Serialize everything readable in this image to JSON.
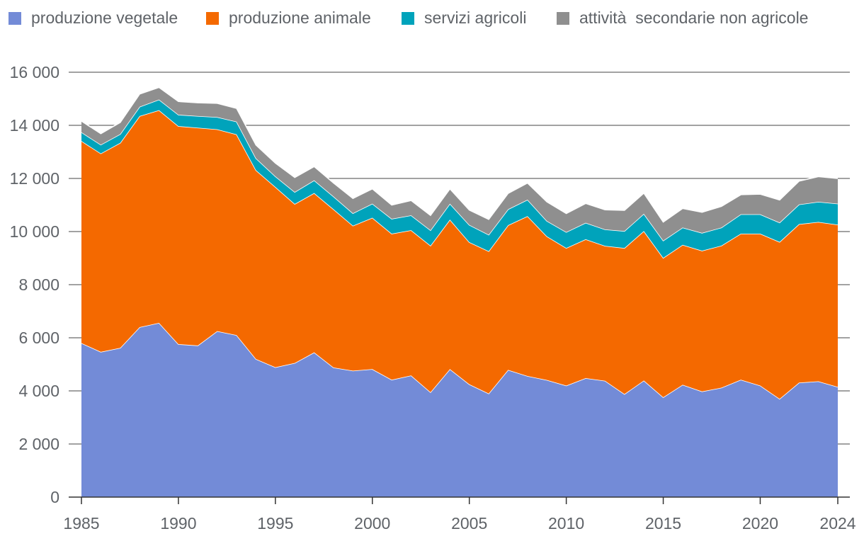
{
  "chart_data": {
    "type": "area",
    "stacked": true,
    "title": "",
    "xlabel": "",
    "ylabel": "",
    "ylim": [
      0,
      16000
    ],
    "yticks": [
      0,
      2000,
      4000,
      6000,
      8000,
      10000,
      12000,
      14000,
      16000
    ],
    "ytick_labels": [
      "0",
      "2 000",
      "4 000",
      "6 000",
      "8 000",
      "10 000",
      "12 000",
      "14 000",
      "16 000"
    ],
    "xticks": [
      1985,
      1990,
      1995,
      2000,
      2005,
      2010,
      2015,
      2020,
      2024
    ],
    "xtick_labels": [
      "1985",
      "1990",
      "1995",
      "2000",
      "2005",
      "2010",
      "2015",
      "2020",
      "2024"
    ],
    "grid": true,
    "legend_position": "top-left",
    "x": [
      1985,
      1986,
      1987,
      1988,
      1989,
      1990,
      1991,
      1992,
      1993,
      1994,
      1995,
      1996,
      1997,
      1998,
      1999,
      2000,
      2001,
      2002,
      2003,
      2004,
      2005,
      2006,
      2007,
      2008,
      2009,
      2010,
      2011,
      2012,
      2013,
      2014,
      2015,
      2016,
      2017,
      2018,
      2019,
      2020,
      2021,
      2022,
      2023,
      2024
    ],
    "series": [
      {
        "name": "produzione vegetale",
        "color": "#738bd7",
        "values": [
          5800,
          5470,
          5620,
          6400,
          6560,
          5760,
          5710,
          6250,
          6100,
          5200,
          4890,
          5050,
          5450,
          4880,
          4760,
          4820,
          4420,
          4580,
          3950,
          4820,
          4250,
          3900,
          4790,
          4560,
          4410,
          4200,
          4480,
          4380,
          3880,
          4390,
          3760,
          4230,
          3980,
          4120,
          4420,
          4200,
          3700,
          4310,
          4360,
          4150
        ]
      },
      {
        "name": "produzione animale",
        "color": "#f46900",
        "values": [
          7610,
          7470,
          7720,
          7950,
          8010,
          8210,
          8200,
          7600,
          7560,
          7110,
          6790,
          5990,
          6000,
          5960,
          5460,
          5700,
          5500,
          5470,
          5520,
          5630,
          5350,
          5360,
          5450,
          6020,
          5410,
          5180,
          5230,
          5080,
          5500,
          5630,
          5250,
          5270,
          5300,
          5350,
          5500,
          5720,
          5910,
          5970,
          6000,
          6110
        ]
      },
      {
        "name": "servizi agricoli",
        "color": "#00a3bb",
        "values": [
          330,
          330,
          330,
          350,
          400,
          430,
          440,
          460,
          480,
          450,
          400,
          450,
          480,
          480,
          470,
          530,
          560,
          560,
          580,
          600,
          650,
          620,
          600,
          620,
          580,
          600,
          620,
          620,
          640,
          650,
          650,
          650,
          670,
          680,
          730,
          730,
          730,
          740,
          760,
          790
        ]
      },
      {
        "name": "attività  secondarie non agricole",
        "color": "#8f8f8f",
        "values": [
          420,
          420,
          440,
          480,
          460,
          500,
          500,
          520,
          500,
          500,
          500,
          550,
          520,
          510,
          560,
          560,
          520,
          560,
          560,
          560,
          560,
          580,
          600,
          630,
          720,
          700,
          730,
          740,
          780,
          780,
          700,
          720,
          780,
          800,
          740,
          760,
          850,
          880,
          950,
          950
        ]
      }
    ]
  }
}
